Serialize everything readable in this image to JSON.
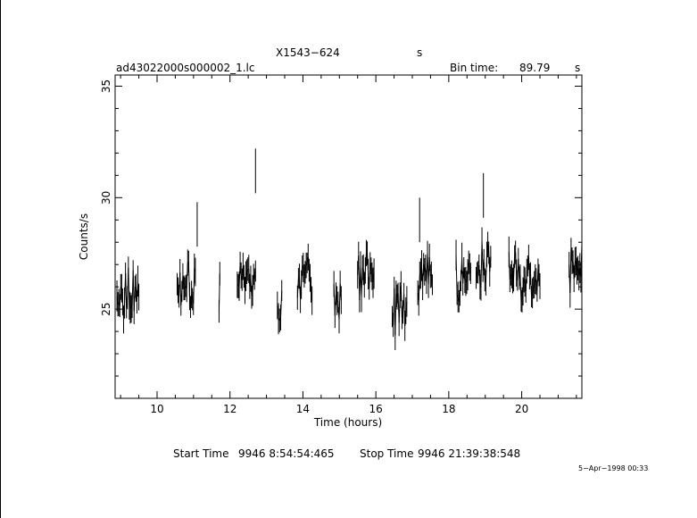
{
  "header": {
    "source": "X1543−624",
    "units_marker": "s",
    "file": "ad43022000s000002_1.lc",
    "bin_label": "Bin time:",
    "bin_value": "89.79",
    "bin_unit": "s"
  },
  "footer": {
    "start_label": "Start Time",
    "start_value": "9946  8:54:54:465",
    "stop_label": "Stop Time",
    "stop_value": "9946 21:39:38:548",
    "date_stamp": "5−Apr−1998 00:33"
  },
  "chart_data": {
    "type": "scatter",
    "xlabel": "Time (hours)",
    "ylabel": "Counts/s",
    "xlim": [
      8.85,
      21.65
    ],
    "ylim": [
      21,
      35.5
    ],
    "xticks": [
      10,
      12,
      14,
      16,
      18,
      20
    ],
    "yticks": [
      25,
      30,
      35
    ],
    "grid": false,
    "segments": [
      {
        "start": 8.9,
        "end": 9.5,
        "mean": 25.7
      },
      {
        "start": 10.55,
        "end": 11.05,
        "mean": 26.0
      },
      {
        "start": 11.7,
        "end": 11.72,
        "mean": 25.6
      },
      {
        "start": 12.2,
        "end": 12.7,
        "mean": 26.5
      },
      {
        "start": 13.3,
        "end": 13.42,
        "mean": 25.0
      },
      {
        "start": 13.85,
        "end": 14.25,
        "mean": 26.4
      },
      {
        "start": 14.85,
        "end": 15.05,
        "mean": 25.5
      },
      {
        "start": 15.5,
        "end": 15.95,
        "mean": 26.5
      },
      {
        "start": 16.45,
        "end": 16.85,
        "mean": 25.3
      },
      {
        "start": 17.15,
        "end": 17.55,
        "mean": 26.8
      },
      {
        "start": 18.2,
        "end": 18.6,
        "mean": 26.2
      },
      {
        "start": 18.75,
        "end": 19.15,
        "mean": 27.0
      },
      {
        "start": 19.65,
        "end": 20.5,
        "mean": 26.5
      },
      {
        "start": 21.3,
        "end": 21.65,
        "mean": 26.8
      }
    ],
    "flares": [
      {
        "x": 12.7,
        "y": 31.2
      },
      {
        "x": 18.95,
        "y": 30.1
      },
      {
        "x": 11.1,
        "y": 28.8
      },
      {
        "x": 17.2,
        "y": 29.0
      }
    ]
  }
}
